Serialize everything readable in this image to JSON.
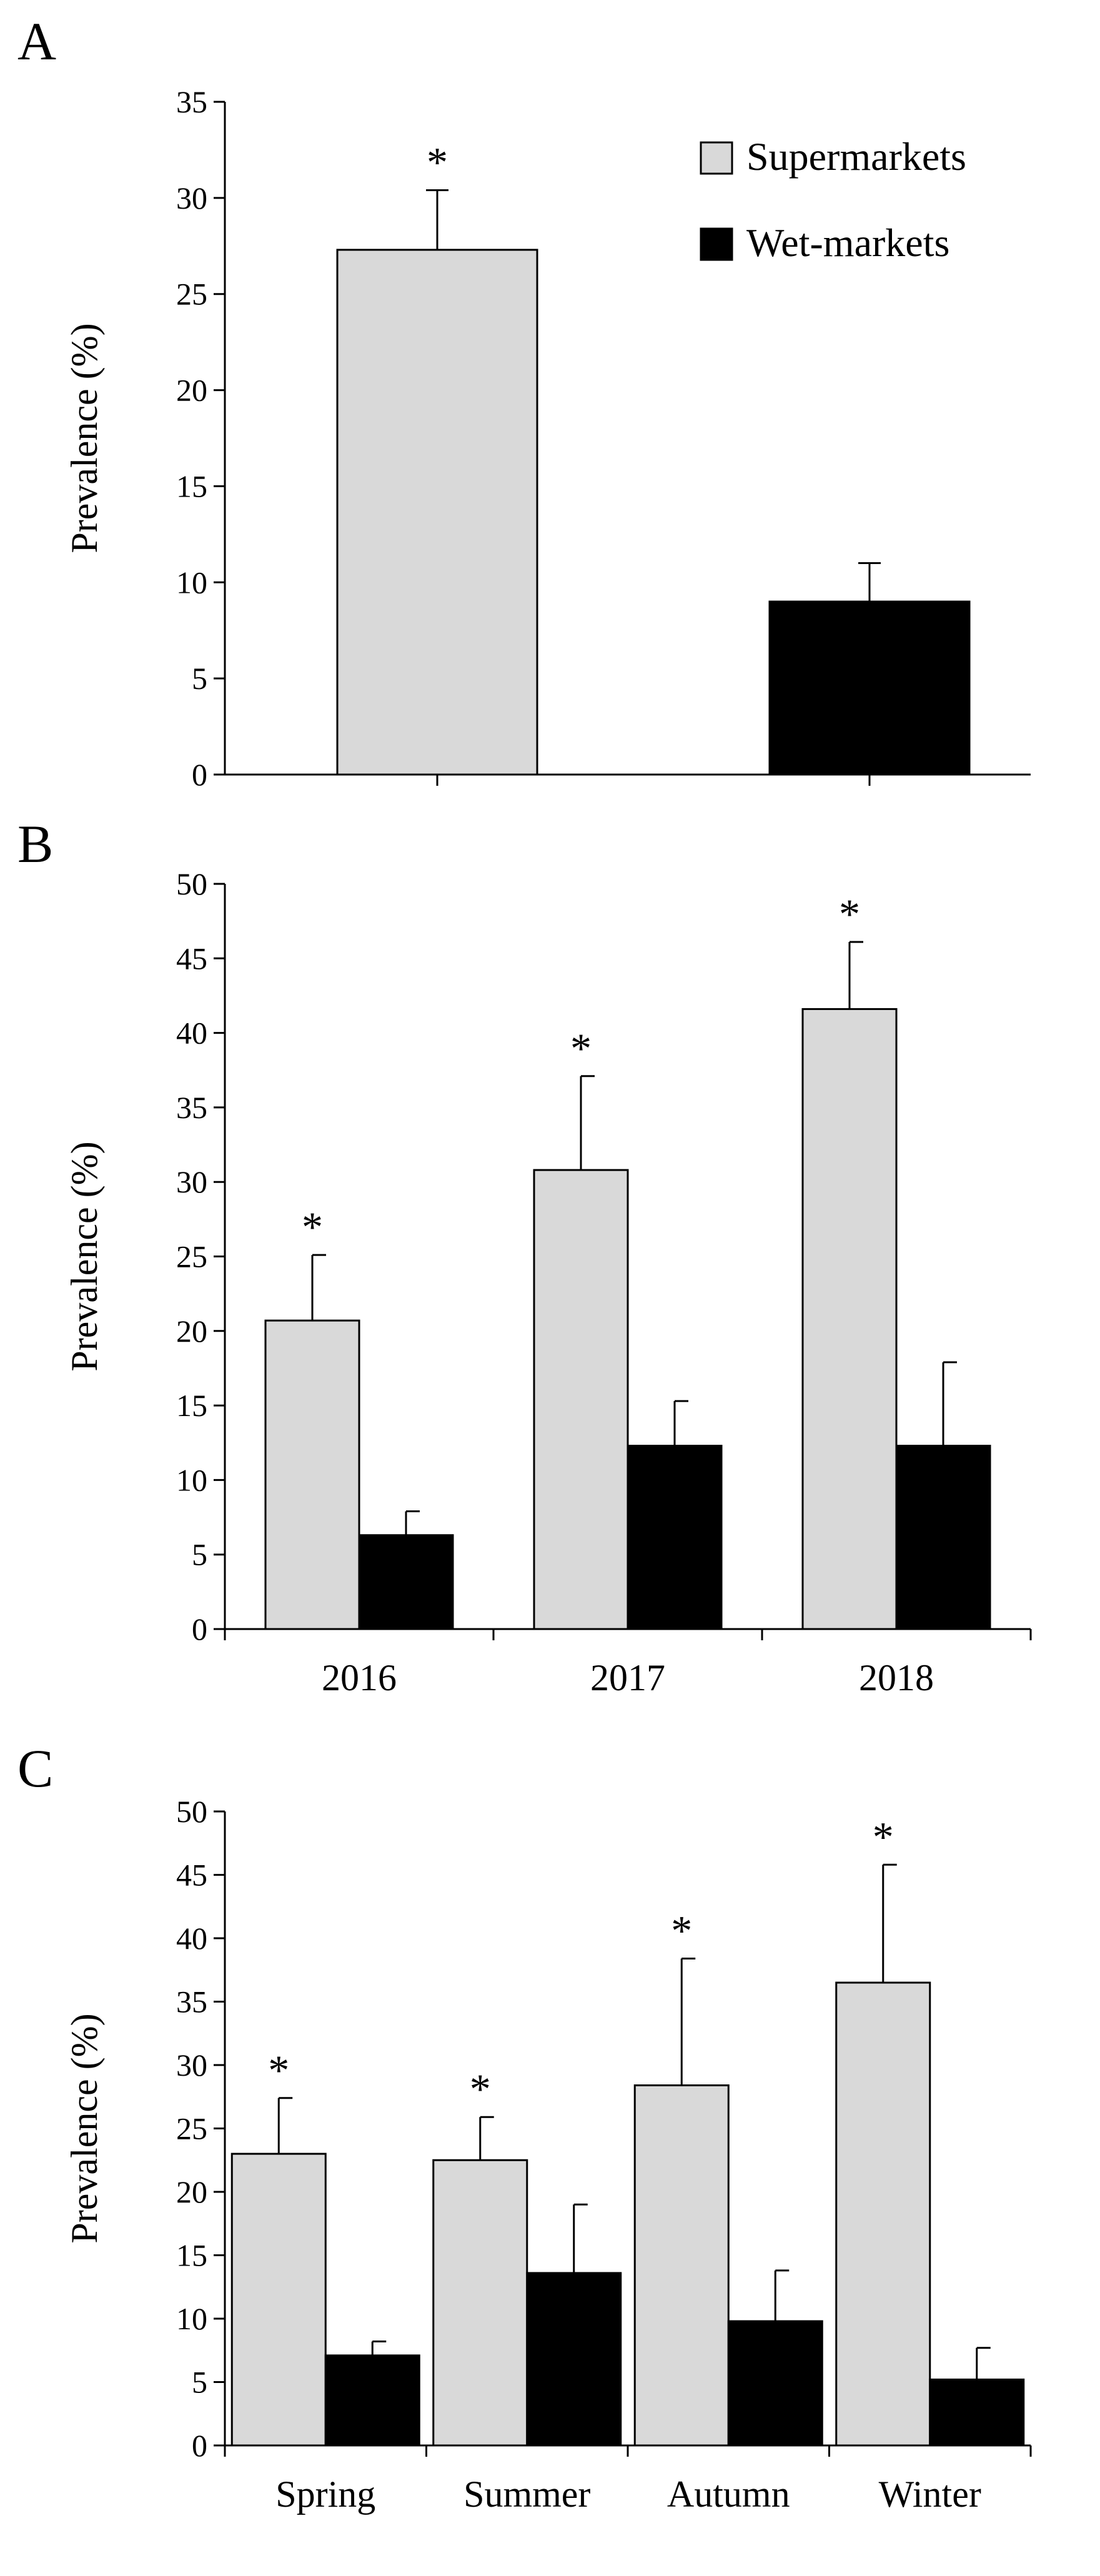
{
  "chart_data": [
    {
      "type": "bar",
      "panel": "A",
      "ylabel": "Prevalence (%)",
      "ylim": [
        0,
        35
      ],
      "yticks": [
        0,
        5,
        10,
        15,
        20,
        25,
        30,
        35
      ],
      "categories": [
        ""
      ],
      "legend": [
        "Supermarkets",
        "Wet-markets"
      ],
      "legend_position": "top-right",
      "series": [
        {
          "name": "Supermarkets",
          "values": [
            27.3
          ],
          "errors": [
            3.1
          ],
          "significance": [
            "*"
          ]
        },
        {
          "name": "Wet-markets",
          "values": [
            9.0
          ],
          "errors": [
            2.0
          ],
          "significance": [
            ""
          ]
        }
      ]
    },
    {
      "type": "bar",
      "panel": "B",
      "ylabel": "Prevalence (%)",
      "ylim": [
        0,
        50
      ],
      "yticks": [
        0,
        5,
        10,
        15,
        20,
        25,
        30,
        35,
        40,
        45,
        50
      ],
      "categories": [
        "2016",
        "2017",
        "2018"
      ],
      "series": [
        {
          "name": "Supermarkets",
          "values": [
            20.7,
            30.8,
            41.6
          ],
          "errors": [
            4.4,
            6.3,
            4.5
          ],
          "significance": [
            "*",
            "*",
            "*"
          ]
        },
        {
          "name": "Wet-markets",
          "values": [
            6.3,
            12.3,
            12.3
          ],
          "errors": [
            1.6,
            3.0,
            5.6
          ],
          "significance": [
            "",
            "",
            ""
          ]
        }
      ]
    },
    {
      "type": "bar",
      "panel": "C",
      "ylabel": "Prevalence (%)",
      "ylim": [
        0,
        50
      ],
      "yticks": [
        0,
        5,
        10,
        15,
        20,
        25,
        30,
        35,
        40,
        45,
        50
      ],
      "categories": [
        "Spring",
        "Summer",
        "Autumn",
        "Winter"
      ],
      "series": [
        {
          "name": "Supermarkets",
          "values": [
            23.0,
            22.5,
            28.4,
            36.5
          ],
          "errors": [
            4.4,
            3.4,
            10.0,
            9.3
          ],
          "significance": [
            "*",
            "*",
            "*",
            "*"
          ]
        },
        {
          "name": "Wet-markets",
          "values": [
            7.1,
            13.6,
            9.8,
            5.2
          ],
          "errors": [
            1.1,
            5.4,
            4.0,
            2.5
          ],
          "significance": [
            "",
            "",
            "",
            ""
          ]
        }
      ]
    }
  ],
  "colors": {
    "supermarkets": "#d9d9d9",
    "wet_markets": "#000000",
    "axis": "#000000"
  }
}
